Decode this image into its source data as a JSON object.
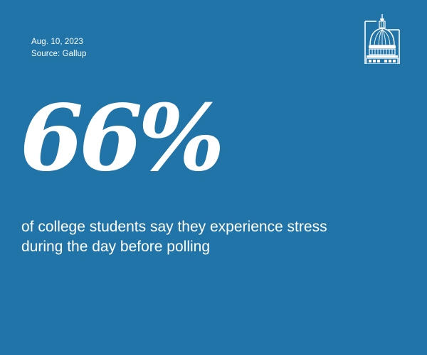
{
  "card": {
    "date": "Aug. 10, 2023",
    "source": "Source: Gallup",
    "statistic": "66%",
    "caption": "of college students say they experience stress during the day before polling",
    "logo_icon": "capitol-dome-icon"
  },
  "colors": {
    "background": "#2174a8",
    "text": "#ffffff"
  }
}
